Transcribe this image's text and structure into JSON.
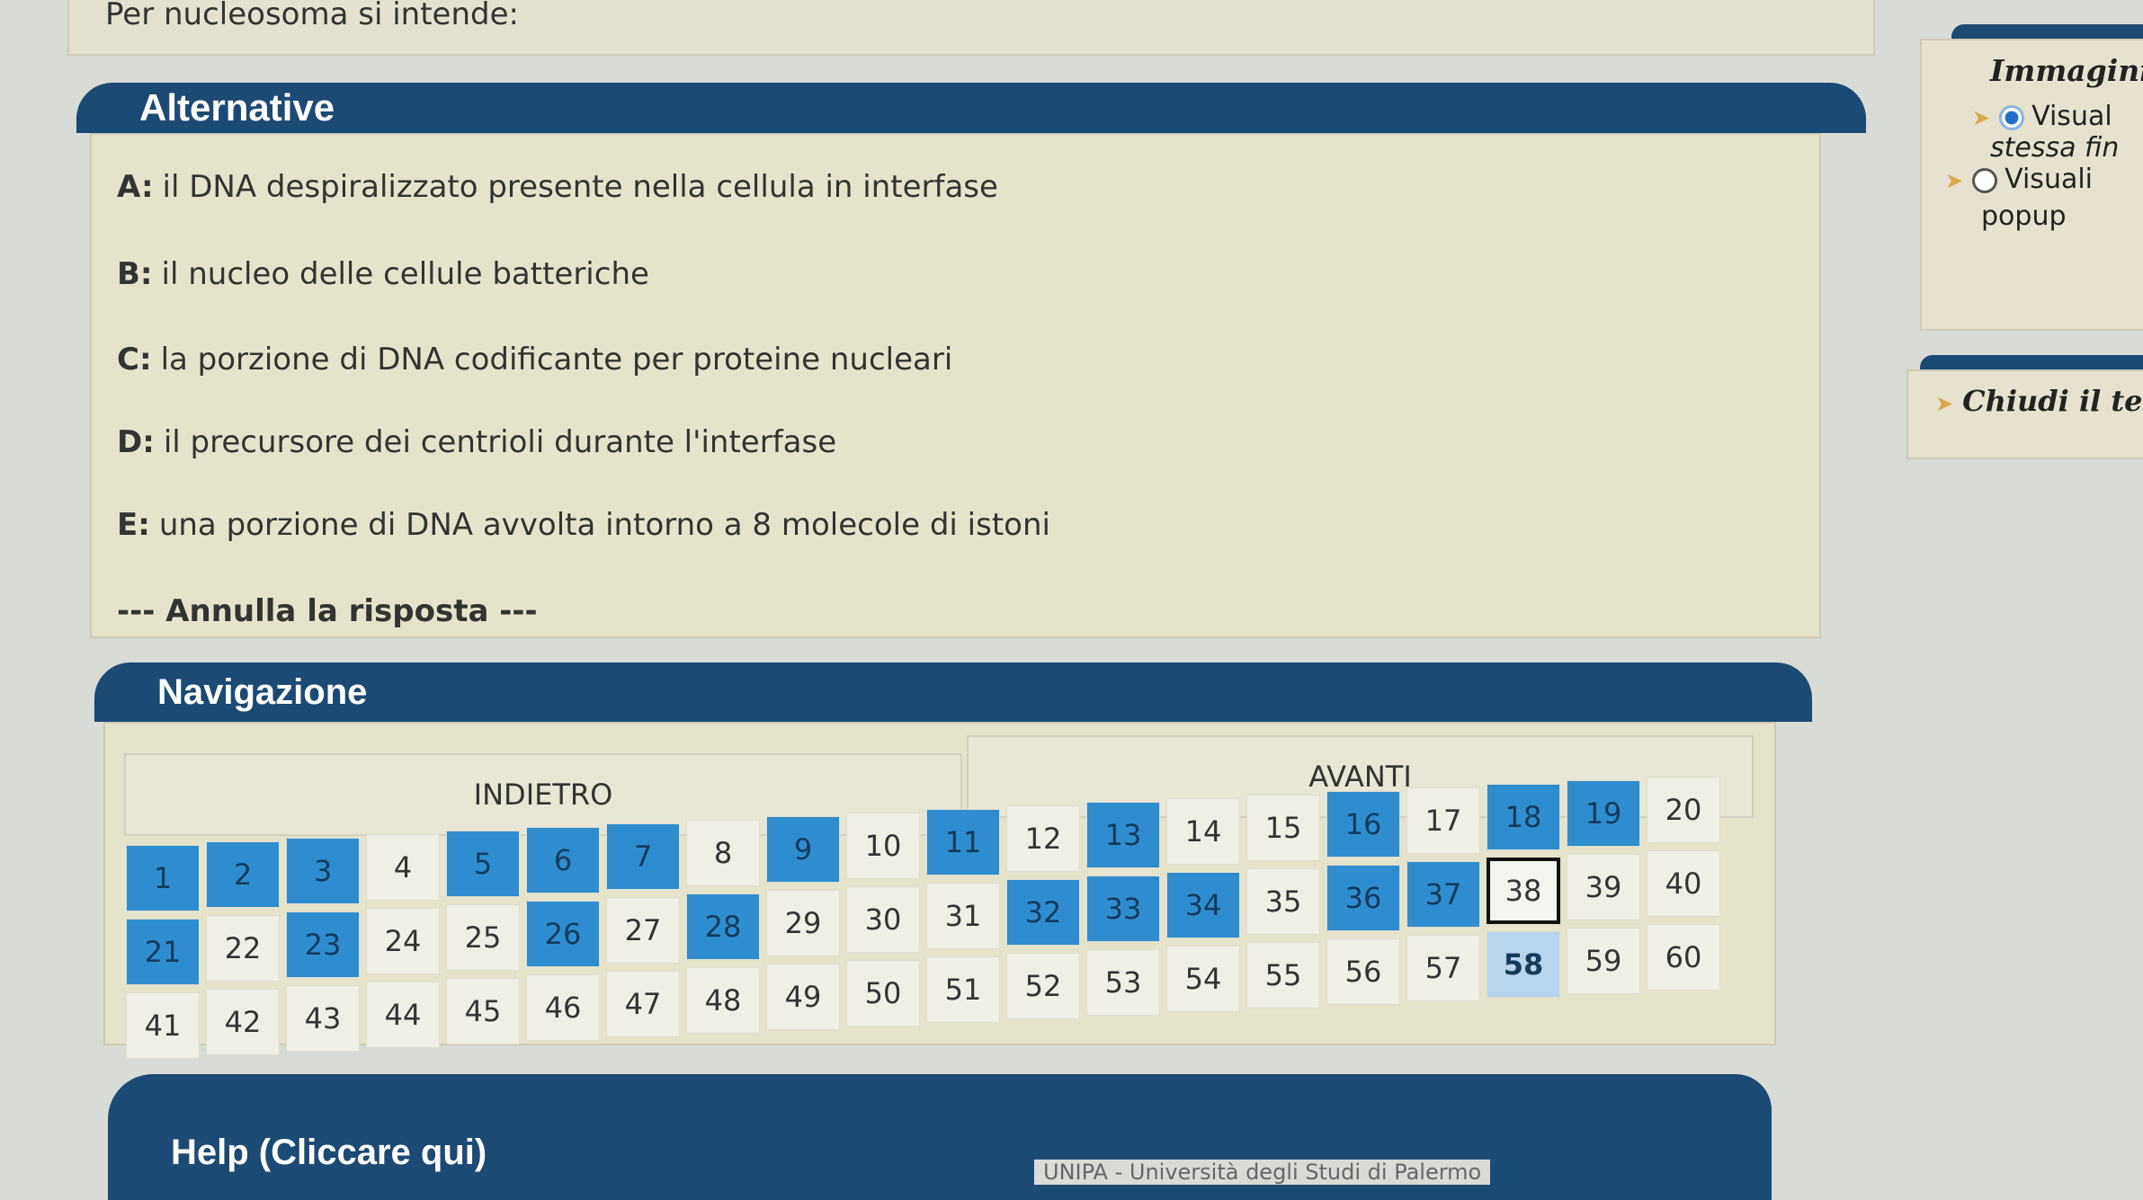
{
  "question": {
    "text": "Per nucleosoma si intende:"
  },
  "alternatives": {
    "title": "Alternative",
    "items": [
      {
        "letter": "A:",
        "text": "il DNA despiralizzato presente nella cellula in interfase"
      },
      {
        "letter": "B:",
        "text": "il nucleo delle cellule batteriche"
      },
      {
        "letter": "C:",
        "text": "la porzione di DNA codificante per proteine nucleari"
      },
      {
        "letter": "D:",
        "text": "il precursore dei centrioli durante l'interfase"
      },
      {
        "letter": "E:",
        "text": "una porzione di DNA avvolta intorno a 8 molecole di istoni"
      }
    ],
    "cancel_label": "--- Annulla la risposta ---"
  },
  "navigation": {
    "title": "Navigazione",
    "back_label": "INDIETRO",
    "next_label": "AVANTI",
    "answered": [
      1,
      2,
      3,
      5,
      6,
      7,
      9,
      11,
      13,
      16,
      18,
      19,
      21,
      23,
      26,
      28,
      32,
      33,
      34,
      36,
      37
    ],
    "current": 58,
    "outlined": 38,
    "total": 60,
    "colors": {
      "answered": "#2f8dcf",
      "current": "#b7d5ec",
      "header": "#1b4a74"
    }
  },
  "help": {
    "title": "Help (Cliccare qui)"
  },
  "footer": {
    "text": "UNIPA - Università degli Studi di Palermo"
  },
  "images_panel": {
    "title": "Immagini",
    "option1": "Visual",
    "option1_cont": "stessa fin",
    "option2": "Visuali",
    "option2_cont": "popup",
    "selected": 1
  },
  "close_panel": {
    "label": "Chiudi il tes"
  }
}
